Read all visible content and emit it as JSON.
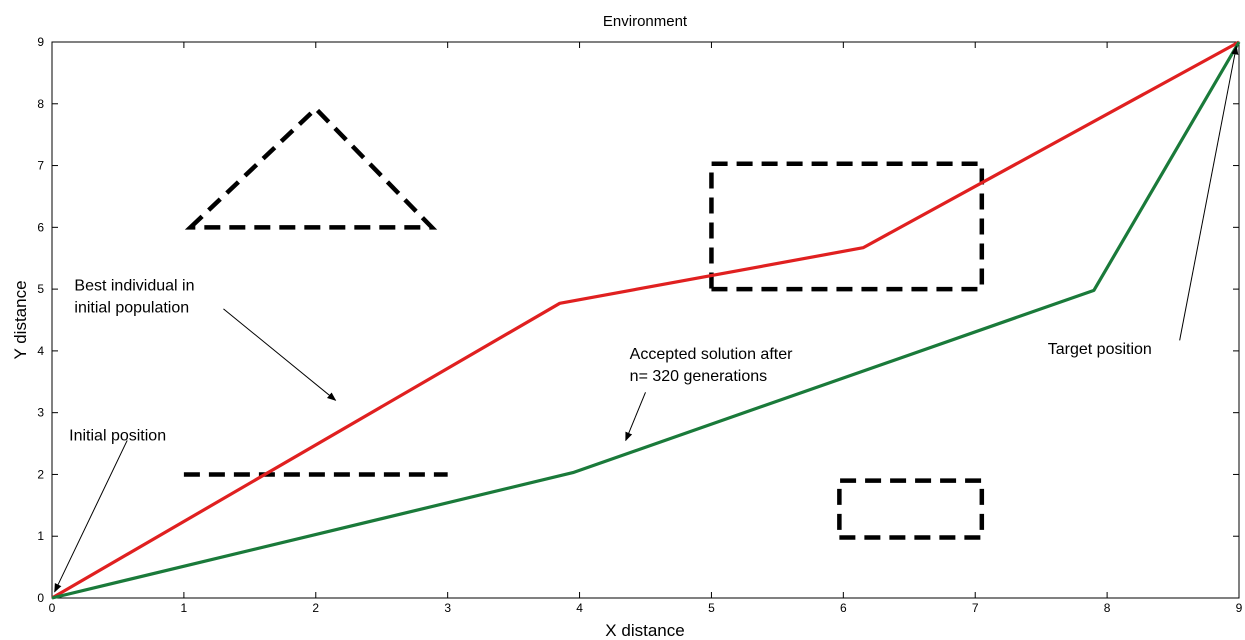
{
  "chart_data": {
    "type": "line",
    "title": "Environment",
    "xlabel": "X distance",
    "ylabel": "Y distance",
    "xlim": [
      0,
      9
    ],
    "ylim": [
      0,
      9
    ],
    "xticks": [
      "0",
      "1",
      "2",
      "3",
      "4",
      "5",
      "6",
      "7",
      "8",
      "9"
    ],
    "yticks": [
      "0",
      "1",
      "2",
      "3",
      "4",
      "5",
      "6",
      "7",
      "8",
      "9"
    ],
    "grid": false,
    "series": [
      {
        "color": "#e02020",
        "points": [
          [
            0,
            0
          ],
          [
            3.85,
            4.77
          ],
          [
            6.15,
            5.67
          ],
          [
            9,
            9
          ]
        ]
      },
      {
        "color": "#1a7a3a",
        "points": [
          [
            0,
            0
          ],
          [
            3.95,
            2.03
          ],
          [
            7.9,
            4.98
          ],
          [
            9,
            9
          ]
        ]
      }
    ],
    "obstacles": [
      {
        "shape": "triangle",
        "points": [
          [
            1.05,
            6.0
          ],
          [
            2.0,
            7.92
          ],
          [
            2.88,
            6.0
          ]
        ]
      },
      {
        "shape": "rectangle",
        "points": [
          [
            5.0,
            5.0
          ],
          [
            7.05,
            5.0
          ],
          [
            7.05,
            7.03
          ],
          [
            5.0,
            7.03
          ]
        ]
      },
      {
        "shape": "rectangle",
        "points": [
          [
            5.97,
            0.98
          ],
          [
            7.05,
            0.98
          ],
          [
            7.05,
            1.9
          ],
          [
            5.97,
            1.9
          ]
        ]
      },
      {
        "shape": "segment",
        "points": [
          [
            1.0,
            2.0
          ],
          [
            3.0,
            2.0
          ]
        ]
      }
    ],
    "annotations": [
      {
        "lines": [
          "Initial position"
        ],
        "text_at": [
          0.13,
          2.55
        ],
        "arrow_from": [
          0.57,
          2.55
        ],
        "arrow_to": [
          0.02,
          0.1
        ]
      },
      {
        "lines": [
          "Best individual in",
          "initial population"
        ],
        "text_at": [
          0.17,
          4.98
        ],
        "arrow_from": [
          1.3,
          4.68
        ],
        "arrow_to": [
          2.15,
          3.2
        ]
      },
      {
        "lines": [
          "Accepted solution after",
          "n= 320 generations"
        ],
        "text_at": [
          4.38,
          3.87
        ],
        "arrow_from": [
          4.5,
          3.33
        ],
        "arrow_to": [
          4.35,
          2.55
        ]
      },
      {
        "lines": [
          "Target position"
        ],
        "text_at": [
          7.55,
          3.95
        ],
        "arrow_from": [
          8.55,
          4.17
        ],
        "arrow_to": [
          8.98,
          8.93
        ]
      }
    ]
  }
}
